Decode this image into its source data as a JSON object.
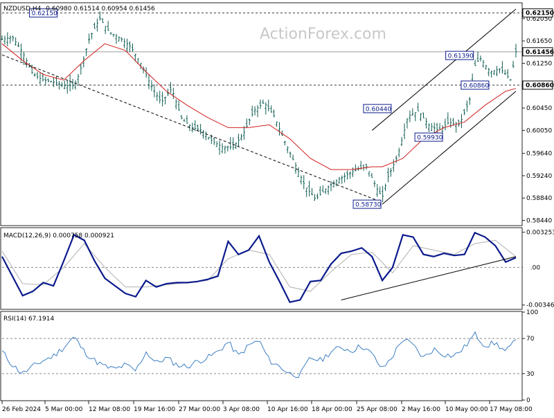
{
  "header": {
    "symbol_tf": "NZDUSD,H4",
    "ohlc": "0.60980 0.61514 0.60954 0.61456"
  },
  "watermark": "ActionForex.com",
  "colors": {
    "candles": "#0b5b4f",
    "ma": "#d11f1f",
    "trendlines": "#000000",
    "macd_line": "#0a1a8c",
    "macd_signal": "#b0b0b0",
    "rsi": "#3d7fc4",
    "dashed": "#555555",
    "label_border": "#0a1a8c",
    "badge": "#ffffff"
  },
  "chart_data": [
    {
      "type": "candlestick",
      "title": "NZDUSD,H4",
      "ylim": [
        0.5836,
        0.6232
      ],
      "yticks": [
        "0.62050",
        "0.61650",
        "0.61250",
        "0.60850",
        "0.60450",
        "0.60050",
        "0.59640",
        "0.59240",
        "0.58840",
        "0.58440"
      ],
      "xticks": [
        "26 Feb 2024",
        "5 Mar 00:00",
        "12 Mar 08:00",
        "19 Mar 16:00",
        "27 Mar 00:00",
        "3 Apr 08:00",
        "10 Apr 16:00",
        "18 Apr 00:00",
        "25 Apr 08:00",
        "2 May 16:00",
        "10 May 00:00",
        "17 May 08:00"
      ],
      "approx_close_path": [
        [
          0,
          0.6168
        ],
        [
          2,
          0.6172
        ],
        [
          4,
          0.6145
        ],
        [
          6,
          0.6105
        ],
        [
          8,
          0.6095
        ],
        [
          10,
          0.6092
        ],
        [
          12,
          0.6085
        ],
        [
          14,
          0.6085
        ],
        [
          15,
          0.6105
        ],
        [
          17,
          0.617
        ],
        [
          19,
          0.6205
        ],
        [
          21,
          0.618
        ],
        [
          23,
          0.617
        ],
        [
          25,
          0.6155
        ],
        [
          27,
          0.6125
        ],
        [
          29,
          0.6085
        ],
        [
          31,
          0.6055
        ],
        [
          33,
          0.608
        ],
        [
          35,
          0.6025
        ],
        [
          37,
          0.601
        ],
        [
          39,
          0.6005
        ],
        [
          41,
          0.5985
        ],
        [
          43,
          0.5975
        ],
        [
          45,
          0.5975
        ],
        [
          47,
          0.6
        ],
        [
          49,
          0.604
        ],
        [
          51,
          0.6055
        ],
        [
          53,
          0.603
        ],
        [
          55,
          0.5985
        ],
        [
          57,
          0.5945
        ],
        [
          59,
          0.5905
        ],
        [
          61,
          0.5882
        ],
        [
          63,
          0.59
        ],
        [
          65,
          0.5915
        ],
        [
          67,
          0.5925
        ],
        [
          69,
          0.5935
        ],
        [
          71,
          0.594
        ],
        [
          73,
          0.59
        ],
        [
          74,
          0.5885
        ],
        [
          75,
          0.592
        ],
        [
          77,
          0.596
        ],
        [
          79,
          0.603
        ],
        [
          81,
          0.604
        ],
        [
          83,
          0.6015
        ],
        [
          85,
          0.6005
        ],
        [
          87,
          0.602
        ],
        [
          89,
          0.6015
        ],
        [
          91,
          0.606
        ],
        [
          92,
          0.612
        ],
        [
          93,
          0.6135
        ],
        [
          95,
          0.611
        ],
        [
          97,
          0.6115
        ],
        [
          99,
          0.6095
        ],
        [
          100,
          0.6146
        ]
      ],
      "series": [
        {
          "name": "MA",
          "values": [
            [
              0,
              0.616
            ],
            [
              4,
              0.613
            ],
            [
              8,
              0.6105
            ],
            [
              12,
              0.6095
            ],
            [
              16,
              0.613
            ],
            [
              20,
              0.616
            ],
            [
              24,
              0.6148
            ],
            [
              28,
              0.611
            ],
            [
              32,
              0.6075
            ],
            [
              36,
              0.605
            ],
            [
              40,
              0.6028
            ],
            [
              44,
              0.601
            ],
            [
              48,
              0.601
            ],
            [
              52,
              0.6015
            ],
            [
              56,
              0.599
            ],
            [
              60,
              0.5955
            ],
            [
              64,
              0.5935
            ],
            [
              68,
              0.5935
            ],
            [
              72,
              0.594
            ],
            [
              74,
              0.594
            ],
            [
              78,
              0.5955
            ],
            [
              82,
              0.599
            ],
            [
              86,
              0.601
            ],
            [
              90,
              0.602
            ],
            [
              94,
              0.605
            ],
            [
              98,
              0.6075
            ],
            [
              100,
              0.608
            ]
          ]
        }
      ],
      "annotations": [
        {
          "label": "0.62150",
          "x": 11,
          "y": 0.6215
        },
        {
          "label": "0.60440",
          "x": 76,
          "y": 0.6044
        },
        {
          "label": "0.58730",
          "x": 74,
          "y": 0.5873
        },
        {
          "label": "0.61390",
          "x": 92,
          "y": 0.6139
        },
        {
          "label": "0.59930",
          "x": 86,
          "y": 0.5993
        },
        {
          "label": "0.60860",
          "x": 95,
          "y": 0.6086
        }
      ],
      "hlines": [
        0.6215,
        0.6086,
        0.61456
      ],
      "price_badges": [
        "0.62150",
        "0.61456",
        "0.60860"
      ]
    },
    {
      "type": "line",
      "title": "MACD(12,26,9) 0.000758 0.000921",
      "ylim": [
        -0.0038,
        0.0036
      ],
      "yticks": [
        "0.003253",
        "0.00",
        "-0.003465"
      ],
      "series": [
        {
          "name": "MACD",
          "values": [
            [
              0,
              0.001
            ],
            [
              2,
              -0.0008
            ],
            [
              4,
              -0.0026
            ],
            [
              6,
              -0.0022
            ],
            [
              8,
              -0.0014
            ],
            [
              10,
              -0.0017
            ],
            [
              12,
              0.0006
            ],
            [
              14,
              0.003
            ],
            [
              16,
              0.0025
            ],
            [
              18,
              0.0006
            ],
            [
              20,
              -0.001
            ],
            [
              22,
              -0.0017
            ],
            [
              24,
              -0.0024
            ],
            [
              26,
              -0.0027
            ],
            [
              28,
              -0.0012
            ],
            [
              30,
              -0.0018
            ],
            [
              32,
              -0.0015
            ],
            [
              34,
              -0.0014
            ],
            [
              36,
              -0.0014
            ],
            [
              38,
              -0.0013
            ],
            [
              40,
              -0.0011
            ],
            [
              42,
              -0.0008
            ],
            [
              44,
              0.0024
            ],
            [
              46,
              0.0012
            ],
            [
              48,
              0.0016
            ],
            [
              50,
              0.0029
            ],
            [
              52,
              0.0005
            ],
            [
              54,
              -0.0013
            ],
            [
              56,
              -0.0032
            ],
            [
              58,
              -0.003
            ],
            [
              60,
              -0.0013
            ],
            [
              62,
              -0.0012
            ],
            [
              64,
              0.0003
            ],
            [
              66,
              0.0013
            ],
            [
              68,
              0.0015
            ],
            [
              70,
              0.0018
            ],
            [
              72,
              0.001
            ],
            [
              74,
              -0.0012
            ],
            [
              76,
              0.0
            ],
            [
              78,
              0.003
            ],
            [
              80,
              0.0028
            ],
            [
              82,
              0.0012
            ],
            [
              84,
              0.001
            ],
            [
              86,
              0.0013
            ],
            [
              88,
              0.0011
            ],
            [
              90,
              0.0012
            ],
            [
              92,
              0.0032
            ],
            [
              94,
              0.0028
            ],
            [
              96,
              0.002
            ],
            [
              98,
              0.0005
            ],
            [
              100,
              0.0009
            ]
          ]
        },
        {
          "name": "Signal",
          "values": [
            [
              0,
              0.0015
            ],
            [
              4,
              -0.0015
            ],
            [
              8,
              -0.0016
            ],
            [
              12,
              0.0
            ],
            [
              16,
              0.0022
            ],
            [
              20,
              0.0
            ],
            [
              24,
              -0.0018
            ],
            [
              28,
              -0.0018
            ],
            [
              32,
              -0.0016
            ],
            [
              36,
              -0.0014
            ],
            [
              40,
              -0.0012
            ],
            [
              44,
              0.0008
            ],
            [
              48,
              0.0016
            ],
            [
              52,
              0.0012
            ],
            [
              56,
              -0.0018
            ],
            [
              60,
              -0.0022
            ],
            [
              64,
              -0.0004
            ],
            [
              68,
              0.0012
            ],
            [
              72,
              0.0014
            ],
            [
              76,
              -0.0005
            ],
            [
              80,
              0.002
            ],
            [
              84,
              0.0016
            ],
            [
              88,
              0.0012
            ],
            [
              92,
              0.0022
            ],
            [
              96,
              0.0025
            ],
            [
              100,
              0.001
            ]
          ]
        }
      ],
      "trendline": [
        [
          66,
          -0.003
        ],
        [
          100,
          0.001
        ]
      ]
    },
    {
      "type": "line",
      "title": "RSI(14) 67.1914",
      "ylim": [
        0,
        100
      ],
      "yticks": [
        "100",
        "70",
        "30",
        "0"
      ],
      "levels": [
        70,
        30
      ],
      "series": [
        {
          "name": "RSI",
          "values": [
            [
              0,
              55
            ],
            [
              2,
              40
            ],
            [
              4,
              30
            ],
            [
              6,
              38
            ],
            [
              8,
              45
            ],
            [
              10,
              50
            ],
            [
              12,
              60
            ],
            [
              14,
              72
            ],
            [
              16,
              55
            ],
            [
              18,
              45
            ],
            [
              20,
              38
            ],
            [
              22,
              35
            ],
            [
              24,
              40
            ],
            [
              26,
              33
            ],
            [
              28,
              55
            ],
            [
              30,
              42
            ],
            [
              32,
              48
            ],
            [
              34,
              40
            ],
            [
              36,
              38
            ],
            [
              38,
              44
            ],
            [
              40,
              48
            ],
            [
              42,
              55
            ],
            [
              44,
              66
            ],
            [
              46,
              50
            ],
            [
              48,
              62
            ],
            [
              50,
              68
            ],
            [
              52,
              45
            ],
            [
              54,
              38
            ],
            [
              56,
              30
            ],
            [
              58,
              28
            ],
            [
              60,
              48
            ],
            [
              62,
              45
            ],
            [
              64,
              55
            ],
            [
              66,
              60
            ],
            [
              68,
              56
            ],
            [
              70,
              62
            ],
            [
              72,
              52
            ],
            [
              74,
              35
            ],
            [
              76,
              50
            ],
            [
              78,
              70
            ],
            [
              80,
              62
            ],
            [
              82,
              48
            ],
            [
              84,
              58
            ],
            [
              86,
              52
            ],
            [
              88,
              50
            ],
            [
              90,
              60
            ],
            [
              92,
              75
            ],
            [
              94,
              62
            ],
            [
              96,
              65
            ],
            [
              98,
              55
            ],
            [
              100,
              67
            ]
          ]
        }
      ]
    }
  ]
}
